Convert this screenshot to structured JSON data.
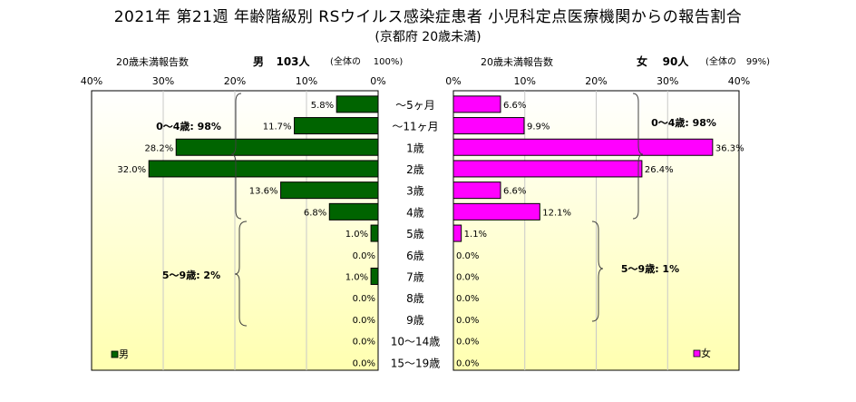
{
  "title": "2021年 第21週 年齢階級別 RSウイルス感染症患者 小児科定点医療機関からの報告割合",
  "subtitle": "(京都府 20歳未満)",
  "chart_data": {
    "type": "bar",
    "categories": [
      "～5ヶ月",
      "～11ヶ月",
      "1歳",
      "2歳",
      "3歳",
      "4歳",
      "5歳",
      "6歳",
      "7歳",
      "8歳",
      "9歳",
      "10～14歳",
      "15～19歳"
    ],
    "series": [
      {
        "name": "男",
        "color": "#006400",
        "values": [
          5.8,
          11.7,
          28.2,
          32.0,
          13.6,
          6.8,
          1.0,
          0.0,
          1.0,
          0.0,
          0.0,
          0.0,
          0.0
        ],
        "value_labels": [
          "5.8%",
          "11.7%",
          "28.2%",
          "32.0%",
          "13.6%",
          "6.8%",
          "1.0%",
          "0.0%",
          "1.0%",
          "0.0%",
          "0.0%",
          "0.0%",
          "0.0%"
        ]
      },
      {
        "name": "女",
        "color": "#FF00FF",
        "values": [
          6.6,
          9.9,
          36.3,
          26.4,
          6.6,
          12.1,
          1.1,
          0.0,
          0.0,
          0.0,
          0.0,
          0.0,
          0.0
        ],
        "value_labels": [
          "6.6%",
          "9.9%",
          "36.3%",
          "26.4%",
          "6.6%",
          "12.1%",
          "1.1%",
          "0.0%",
          "0.0%",
          "0.0%",
          "0.0%",
          "0.0%",
          "0.0%"
        ]
      }
    ],
    "xlim": [
      0,
      40
    ],
    "xticks": [
      "40%",
      "30%",
      "20%",
      "10%",
      "0%"
    ],
    "xticks_right": [
      "0%",
      "10%",
      "20%",
      "30%",
      "40%"
    ],
    "left_header": {
      "label": "20歳未満報告数",
      "sex": "男",
      "count": "103人",
      "ratio_label": "(全体の",
      "ratio": "100%)"
    },
    "right_header": {
      "label": "20歳未満報告数",
      "sex": "女",
      "count": "90人",
      "ratio_label": "(全体の",
      "ratio": "99%)"
    },
    "annotations": {
      "left_0_4": "0～4歳: 98%",
      "left_5_9": "5～9歳: 2%",
      "right_0_4": "0～4歳: 98%",
      "right_5_9": "5～9歳: 1%"
    },
    "legend_left": "男",
    "legend_right": "女",
    "grid": true
  }
}
